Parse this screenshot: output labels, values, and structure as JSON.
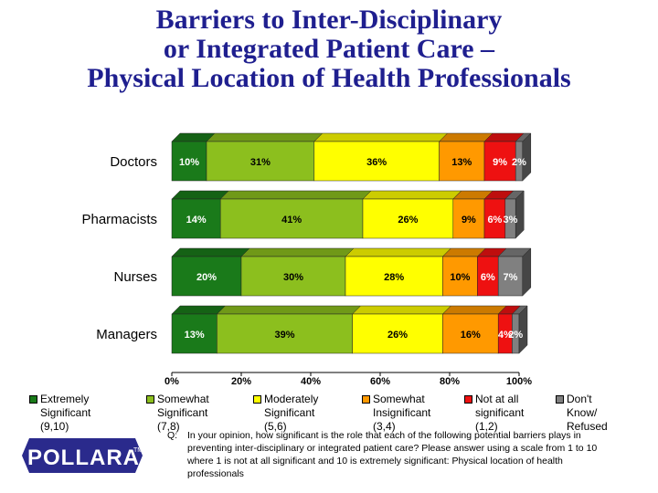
{
  "title_lines": [
    "Barriers to Inter-Disciplinary",
    "or Integrated Patient Care –",
    "Physical Location of Health Professionals"
  ],
  "chart_data": {
    "type": "bar",
    "orientation": "horizontal",
    "stacked": "100%",
    "categories": [
      "Doctors",
      "Pharmacists",
      "Nurses",
      "Managers"
    ],
    "series": [
      {
        "name": "Extremely Significant (9,10)",
        "legend_lines": [
          "Extremely",
          "Significant (9,10)"
        ],
        "color": "#1a7a1a",
        "values": [
          10,
          14,
          20,
          13
        ],
        "labels": [
          "10%",
          "14%",
          "20%",
          "13%"
        ]
      },
      {
        "name": "Somewhat Significant (7,8)",
        "legend_lines": [
          "Somewhat",
          "Significant (7,8)"
        ],
        "color": "#8cbf1e",
        "values": [
          31,
          41,
          30,
          39
        ],
        "labels": [
          "31%",
          "41%",
          "30%",
          "39%"
        ]
      },
      {
        "name": "Moderately Significant (5,6)",
        "legend_lines": [
          "Moderately",
          "Significant (5,6)"
        ],
        "color": "#ffff00",
        "values": [
          36,
          26,
          28,
          26
        ],
        "labels": [
          "36%",
          "26%",
          "28%",
          "26%"
        ]
      },
      {
        "name": "Somewhat Insignificant (3,4)",
        "legend_lines": [
          "Somewhat",
          "Insignificant (3,4)"
        ],
        "color": "#ff9900",
        "values": [
          13,
          9,
          10,
          16
        ],
        "labels": [
          "13%",
          "9%",
          "10%",
          "16%"
        ]
      },
      {
        "name": "Not at all significant (1,2)",
        "legend_lines": [
          "Not at all",
          "significant (1,2)"
        ],
        "color": "#ee1111",
        "values": [
          9,
          6,
          6,
          4
        ],
        "labels": [
          "9%",
          "6%",
          "6%",
          "4%"
        ]
      },
      {
        "name": "Don't Know/ Refused",
        "legend_lines": [
          "Don't Know/",
          "Refused"
        ],
        "color": "#808080",
        "values": [
          2,
          3,
          7,
          2
        ],
        "labels": [
          "2%",
          "3%",
          "7%",
          "2%"
        ]
      }
    ],
    "x_ticks": [
      "0%",
      "20%",
      "40%",
      "60%",
      "80%",
      "100%"
    ],
    "xlim": [
      0,
      100
    ],
    "grid": false,
    "legend_position": "bottom"
  },
  "question": {
    "label": "Q:",
    "text": "In your opinion, how significant is the role that each of the following potential barriers plays in preventing inter-disciplinary or integrated patient care?  Please answer using a scale from 1 to 10 where 1 is not at all significant and 10 is extremely significant: Physical location of health professionals"
  },
  "logo": {
    "text": "POLLARA",
    "tm": "TM",
    "color": "#2a2a8c"
  }
}
